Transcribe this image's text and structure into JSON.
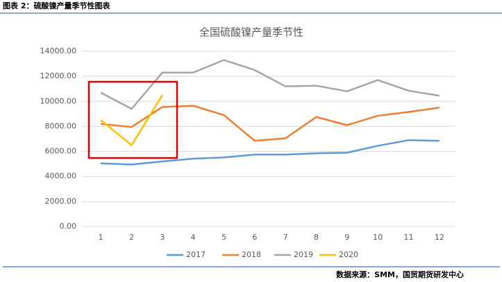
{
  "header": {
    "title": "图表 2：硫酸镍产量季节性图表"
  },
  "footer": {
    "source": "数据来源：SMM，国贸期货研发中心"
  },
  "chart_data": {
    "type": "line",
    "title": "全国硫酸镍产量季节性",
    "categories": [
      "1",
      "2",
      "3",
      "4",
      "5",
      "6",
      "7",
      "8",
      "9",
      "10",
      "11",
      "12"
    ],
    "series": [
      {
        "name": "2017",
        "color": "#5b9bd5",
        "values": [
          5050,
          4950,
          5200,
          5420,
          5520,
          5750,
          5750,
          5850,
          5900,
          6450,
          6900,
          6850
        ]
      },
      {
        "name": "2018",
        "color": "#ed7d31",
        "values": [
          8200,
          7950,
          9550,
          9650,
          8900,
          6850,
          7050,
          8750,
          8100,
          8850,
          9150,
          9500
        ]
      },
      {
        "name": "2019",
        "color": "#a5a5a5",
        "values": [
          10700,
          9400,
          12300,
          12300,
          13300,
          12500,
          11200,
          11250,
          10800,
          11700,
          10850,
          10450
        ]
      },
      {
        "name": "2020",
        "color": "#ffc000",
        "values": [
          8500,
          6500,
          10500,
          null,
          null,
          null,
          null,
          null,
          null,
          null,
          null,
          null
        ]
      }
    ],
    "ylim": [
      0,
      14000
    ],
    "yticks": [
      {
        "value": 0,
        "label": "0.00"
      },
      {
        "value": 2000,
        "label": "2000.00"
      },
      {
        "value": 4000,
        "label": "4000.00"
      },
      {
        "value": 6000,
        "label": "6000.00"
      },
      {
        "value": 8000,
        "label": "8000.00"
      },
      {
        "value": 10000,
        "label": "10000.00"
      },
      {
        "value": 12000,
        "label": "12000.00"
      },
      {
        "value": 14000,
        "label": "14000.00"
      }
    ],
    "grid": true,
    "legend": "bottom"
  }
}
